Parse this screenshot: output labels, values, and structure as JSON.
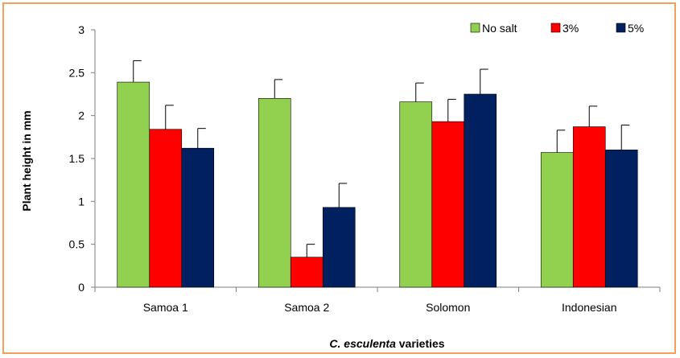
{
  "chart_data": {
    "type": "bar",
    "categories": [
      "Samoa 1",
      "Samoa 2",
      "Solomon",
      "Indonesian"
    ],
    "series": [
      {
        "name": "No salt",
        "color": "#92d050",
        "values": [
          2.39,
          2.2,
          2.16,
          1.57
        ],
        "errors": [
          0.25,
          0.22,
          0.22,
          0.26
        ]
      },
      {
        "name": "3%",
        "color": "#ff0000",
        "values": [
          1.84,
          0.35,
          1.93,
          1.87
        ],
        "errors": [
          0.28,
          0.15,
          0.26,
          0.24
        ]
      },
      {
        "name": "5%",
        "color": "#002060",
        "values": [
          1.62,
          0.93,
          2.25,
          1.6
        ],
        "errors": [
          0.23,
          0.28,
          0.29,
          0.29
        ]
      }
    ],
    "ylim": [
      0,
      3
    ],
    "yticks": [
      "0",
      "0.5",
      "1",
      "1.5",
      "2",
      "2.5",
      "3"
    ],
    "ylabel": "Plant height in mm",
    "xlabel_italic": "C. esculenta",
    "xlabel_rest": " varieties",
    "legend_position": "top-right",
    "grid": false
  }
}
